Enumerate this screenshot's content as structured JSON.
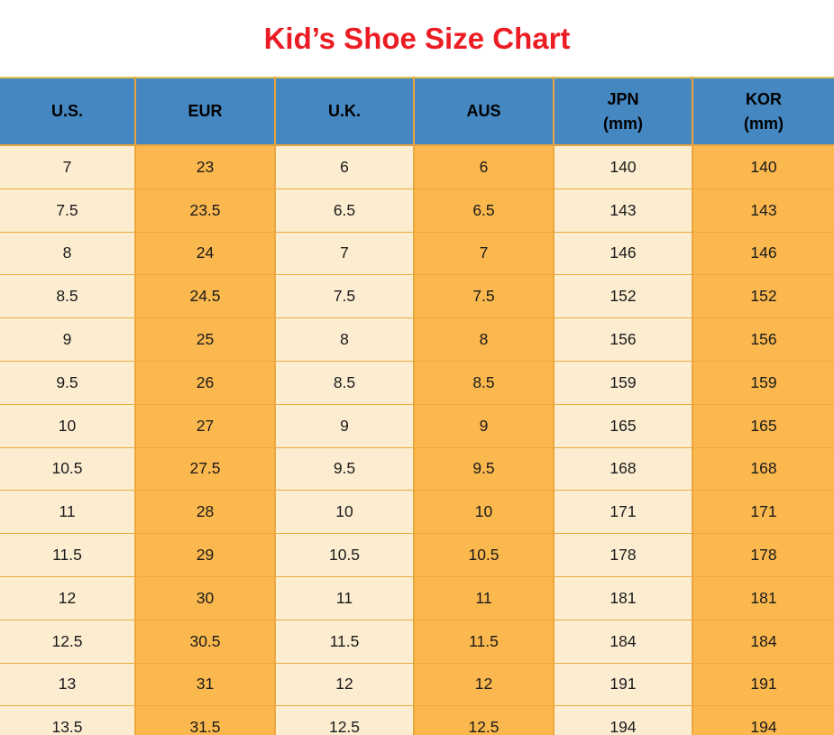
{
  "title": {
    "text": "Kid’s Shoe Size Chart",
    "color": "#ec1c24"
  },
  "chart_data": {
    "type": "table",
    "title": "Kid’s Shoe Size Chart",
    "columns": [
      {
        "label": "U.S.",
        "sub": ""
      },
      {
        "label": "EUR",
        "sub": ""
      },
      {
        "label": "U.K.",
        "sub": ""
      },
      {
        "label": "AUS",
        "sub": ""
      },
      {
        "label": "JPN",
        "sub": "(mm)"
      },
      {
        "label": "KOR",
        "sub": "(mm)"
      }
    ],
    "rows": [
      [
        "7",
        "23",
        "6",
        "6",
        "140",
        "140"
      ],
      [
        "7.5",
        "23.5",
        "6.5",
        "6.5",
        "143",
        "143"
      ],
      [
        "8",
        "24",
        "7",
        "7",
        "146",
        "146"
      ],
      [
        "8.5",
        "24.5",
        "7.5",
        "7.5",
        "152",
        "152"
      ],
      [
        "9",
        "25",
        "8",
        "8",
        "156",
        "156"
      ],
      [
        "9.5",
        "26",
        "8.5",
        "8.5",
        "159",
        "159"
      ],
      [
        "10",
        "27",
        "9",
        "9",
        "165",
        "165"
      ],
      [
        "10.5",
        "27.5",
        "9.5",
        "9.5",
        "168",
        "168"
      ],
      [
        "11",
        "28",
        "10",
        "10",
        "171",
        "171"
      ],
      [
        "11.5",
        "29",
        "10.5",
        "10.5",
        "178",
        "178"
      ],
      [
        "12",
        "30",
        "11",
        "11",
        "181",
        "181"
      ],
      [
        "12.5",
        "30.5",
        "11.5",
        "11.5",
        "184",
        "184"
      ],
      [
        "13",
        "31",
        "12",
        "12",
        "191",
        "191"
      ],
      [
        "13.5",
        "31.5",
        "12.5",
        "12.5",
        "194",
        "194"
      ]
    ]
  },
  "colors": {
    "header_bg": "#4587c1",
    "column_light_bg": "#fcedd1",
    "column_orange_bg": "#fbb84e",
    "grid_border": "#e9a33c",
    "title_red": "#ec1c24",
    "text": "#1a1a1a"
  }
}
